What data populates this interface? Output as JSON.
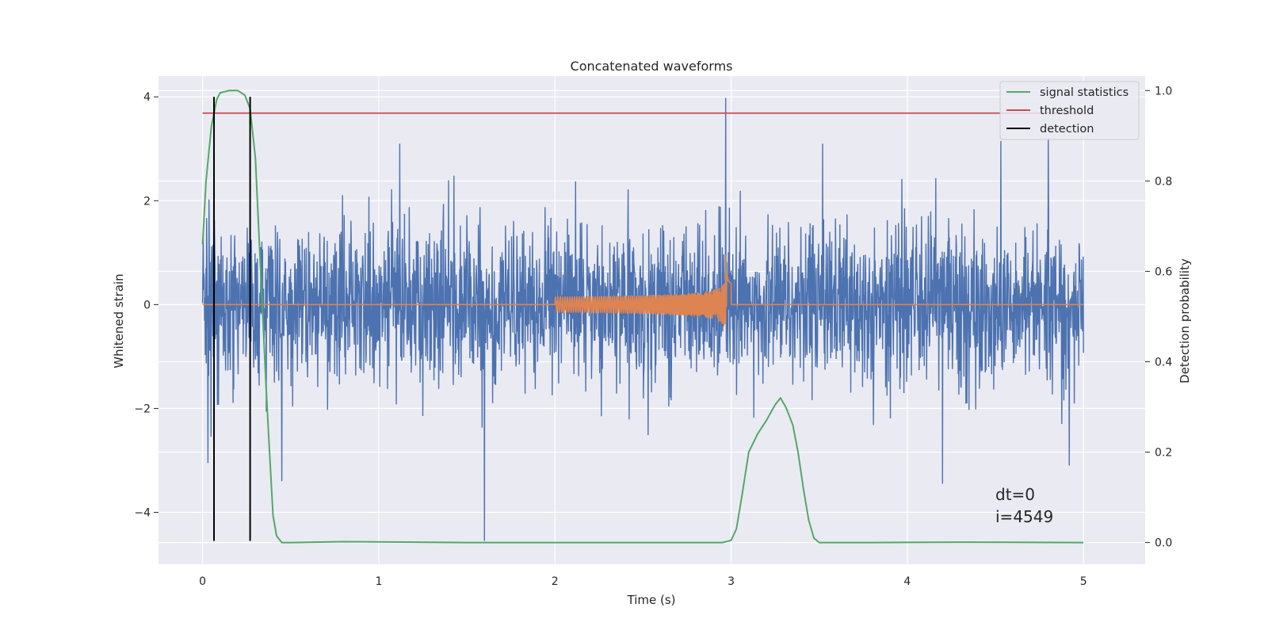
{
  "chart_data": {
    "type": "line",
    "title": "Concatenated waveforms",
    "xlabel": "Time (s)",
    "ylabel": "Whitened strain",
    "ylabel_right": "Detection probability",
    "xlim": [
      -0.25,
      5.35
    ],
    "ylim": [
      -5.0,
      4.4
    ],
    "ylim_right": [
      -0.048,
      1.032
    ],
    "x_ticks": [
      0,
      1,
      2,
      3,
      4,
      5
    ],
    "y_ticks": [
      -4,
      -2,
      0,
      2,
      4
    ],
    "y_ticks_right": [
      0.0,
      0.2,
      0.4,
      0.6,
      0.8,
      1.0
    ],
    "grid": true,
    "legend_position": "top-right",
    "legend": [
      "signal statistics",
      "threshold",
      "detection"
    ],
    "colors": {
      "strain": "#4c72b0",
      "template": "#dd8452",
      "signal_statistics": "#55a868",
      "threshold": "#c44e52",
      "detection": "#000000",
      "axes_bg": "#eaeaf2",
      "grid": "#ffffff"
    },
    "annotations": [
      "dt=0",
      "i=4549"
    ],
    "series": [
      {
        "name": "",
        "kind": "whitened strain (noise)",
        "axis": "left",
        "x_range": [
          0,
          5
        ],
        "envelope": [
          -1.2,
          1.2
        ],
        "noted_peaks": [
          {
            "x": 2.97,
            "y": 3.98
          },
          {
            "x": 1.6,
            "y": -4.55
          },
          {
            "x": 4.2,
            "y": -3.45
          },
          {
            "x": 0.45,
            "y": -3.4
          },
          {
            "x": 4.92,
            "y": -3.1
          },
          {
            "x": 0.03,
            "y": -3.05
          },
          {
            "x": 1.12,
            "y": 3.1
          },
          {
            "x": 3.52,
            "y": 3.1
          },
          {
            "x": 4.53,
            "y": 3.15
          },
          {
            "x": 4.8,
            "y": 3.2
          }
        ]
      },
      {
        "name": "",
        "kind": "chirp waveform",
        "axis": "left",
        "x_range": [
          0,
          5
        ],
        "chirp_start": 2.0,
        "merger": 2.97,
        "peak_amplitude": 1.3
      },
      {
        "name": "signal statistics",
        "axis": "right",
        "x": [
          0,
          0.02,
          0.05,
          0.08,
          0.1,
          0.15,
          0.2,
          0.24,
          0.27,
          0.3,
          0.33,
          0.36,
          0.38,
          0.4,
          0.42,
          0.45,
          0.5,
          0.8,
          1.5,
          2.5,
          2.95,
          3.0,
          3.03,
          3.06,
          3.1,
          3.15,
          3.2,
          3.25,
          3.28,
          3.31,
          3.35,
          3.38,
          3.41,
          3.44,
          3.47,
          3.5,
          3.8,
          4.3,
          5.0
        ],
        "y": [
          0.66,
          0.8,
          0.92,
          0.98,
          0.995,
          1.0,
          1.0,
          0.99,
          0.96,
          0.85,
          0.6,
          0.35,
          0.2,
          0.06,
          0.015,
          0.0,
          0.0,
          0.002,
          0.0,
          0.0,
          0.0,
          0.005,
          0.03,
          0.1,
          0.2,
          0.24,
          0.27,
          0.305,
          0.32,
          0.3,
          0.26,
          0.2,
          0.12,
          0.05,
          0.01,
          0.0,
          0.0,
          0.001,
          0.0
        ]
      },
      {
        "name": "threshold",
        "axis": "right",
        "x": [
          0,
          5
        ],
        "y": [
          0.95,
          0.95
        ]
      },
      {
        "name": "detection",
        "axis": "left",
        "x": [
          0.065,
          0.27
        ],
        "y_range": [
          -4.55,
          4.0
        ]
      }
    ]
  }
}
